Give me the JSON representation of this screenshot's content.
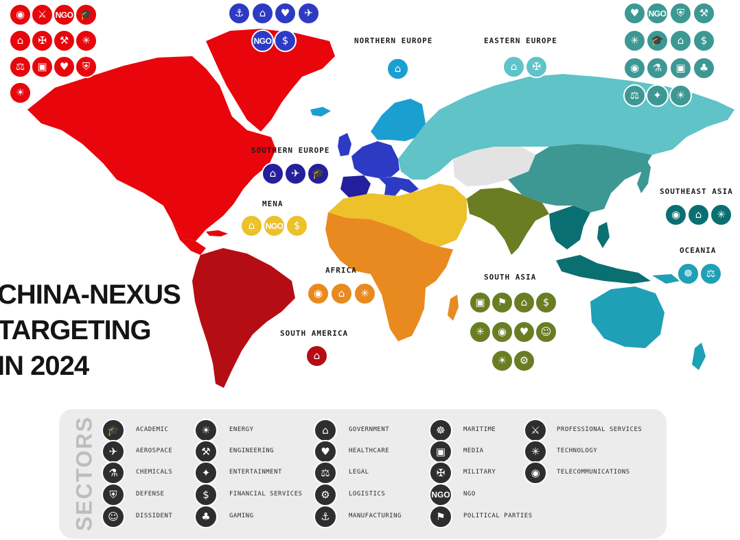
{
  "title": [
    "CHINA-NEXUS",
    "TARGETING",
    "IN 2024"
  ],
  "colors": {
    "north_america": "#e8050b",
    "south_america": "#b50d14",
    "western_europe": "#2d3bc4",
    "southern_europe": "#241f9c",
    "northern_europe": "#1b9fd0",
    "eastern_europe": "#5fc3c8",
    "mena": "#ecc129",
    "africa": "#e88a1f",
    "south_asia": "#6a7d23",
    "east_asia": "#3d9894",
    "southeast_asia": "#0a6f71",
    "oceania": "#1fa0b6",
    "untargeted": "#e3e3e3",
    "legend_icon": "#2e2e2e"
  },
  "regions": [
    {
      "id": "north-america",
      "label": "",
      "color": "#e8050b",
      "sectors": [
        "telecommunications",
        "professional-services",
        "ngo",
        "academic",
        "government",
        "military",
        "engineering",
        "technology",
        "legal",
        "media",
        "healthcare",
        "defense",
        "energy"
      ]
    },
    {
      "id": "western-europe",
      "label": "",
      "color": "#2d3bc4",
      "sectors": [
        "manufacturing",
        "government",
        "healthcare",
        "aerospace",
        "ngo",
        "financial-services"
      ]
    },
    {
      "id": "northern-europe",
      "label": "NORTHERN EUROPE",
      "color": "#1b9fd0",
      "sectors": [
        "government"
      ]
    },
    {
      "id": "eastern-europe",
      "label": "EASTERN EUROPE",
      "color": "#5fc3c8",
      "sectors": [
        "government",
        "military"
      ]
    },
    {
      "id": "east-asia",
      "label": "",
      "color": "#3d9894",
      "sectors": [
        "healthcare",
        "ngo",
        "defense",
        "engineering",
        "technology",
        "academic",
        "government",
        "financial-services",
        "telecommunications",
        "chemicals",
        "media",
        "gaming",
        "legal",
        "entertainment",
        "energy"
      ]
    },
    {
      "id": "southern-europe",
      "label": "SOUTHERN EUROPE",
      "color": "#241f9c",
      "sectors": [
        "government",
        "aerospace",
        "academic"
      ]
    },
    {
      "id": "mena",
      "label": "MENA",
      "color": "#ecc129",
      "sectors": [
        "government",
        "ngo",
        "financial-services"
      ]
    },
    {
      "id": "southeast-asia",
      "label": "SOUTHEAST ASIA",
      "color": "#0a6f71",
      "sectors": [
        "telecommunications",
        "government",
        "technology"
      ]
    },
    {
      "id": "oceania",
      "label": "OCEANIA",
      "color": "#1fa0b6",
      "sectors": [
        "maritime",
        "legal"
      ]
    },
    {
      "id": "africa",
      "label": "AFRICA",
      "color": "#e88a1f",
      "sectors": [
        "telecommunications",
        "government",
        "technology"
      ]
    },
    {
      "id": "south-asia",
      "label": "SOUTH ASIA",
      "color": "#6a7d23",
      "sectors": [
        "media",
        "political-parties",
        "government",
        "financial-services",
        "technology",
        "telecommunications",
        "healthcare",
        "dissident",
        "energy",
        "logistics"
      ]
    },
    {
      "id": "south-america",
      "label": "SOUTH AMERICA",
      "color": "#b50d14",
      "sectors": [
        "government"
      ]
    }
  ],
  "legend": {
    "title": "SECTORS",
    "items": [
      {
        "key": "academic",
        "label": "ACADEMIC",
        "icon": "graduation-cap-icon"
      },
      {
        "key": "aerospace",
        "label": "AEROSPACE",
        "icon": "rocket-icon"
      },
      {
        "key": "chemicals",
        "label": "CHEMICALS",
        "icon": "flask-icon"
      },
      {
        "key": "defense",
        "label": "DEFENSE",
        "icon": "shield-icon"
      },
      {
        "key": "dissident",
        "label": "DISSIDENT",
        "icon": "person-head-icon"
      },
      {
        "key": "energy",
        "label": "ENERGY",
        "icon": "light-bulb-icon"
      },
      {
        "key": "engineering",
        "label": "ENGINEERING",
        "icon": "tools-icon"
      },
      {
        "key": "entertainment",
        "label": "ENTERTAINMENT",
        "icon": "film-reel-icon"
      },
      {
        "key": "financial-services",
        "label": "FINANCIAL SERVICES",
        "icon": "dollar-coin-icon"
      },
      {
        "key": "gaming",
        "label": "GAMING",
        "icon": "gamepad-icon"
      },
      {
        "key": "government",
        "label": "GOVERNMENT",
        "icon": "government-building-icon"
      },
      {
        "key": "healthcare",
        "label": "HEALTHCARE",
        "icon": "heart-hands-icon"
      },
      {
        "key": "legal",
        "label": "LEGAL",
        "icon": "gavel-icon"
      },
      {
        "key": "logistics",
        "label": "LOGISTICS",
        "icon": "gears-icon"
      },
      {
        "key": "manufacturing",
        "label": "MANUFACTURING",
        "icon": "factory-machine-icon"
      },
      {
        "key": "maritime",
        "label": "MARITIME",
        "icon": "ship-wheel-icon"
      },
      {
        "key": "media",
        "label": "MEDIA",
        "icon": "camera-icon"
      },
      {
        "key": "military",
        "label": "MILITARY",
        "icon": "tank-icon"
      },
      {
        "key": "ngo",
        "label": "NGO",
        "icon": "ngo-text-icon"
      },
      {
        "key": "political-parties",
        "label": "POLITICAL PARTIES",
        "icon": "podium-icon"
      },
      {
        "key": "professional-services",
        "label": "PROFESSIONAL SERVICES",
        "icon": "handshake-icon"
      },
      {
        "key": "technology",
        "label": "TECHNOLOGY",
        "icon": "microchip-icon"
      },
      {
        "key": "telecommunications",
        "label": "TELECOMMUNICATIONS",
        "icon": "broadcast-tower-icon"
      }
    ]
  }
}
